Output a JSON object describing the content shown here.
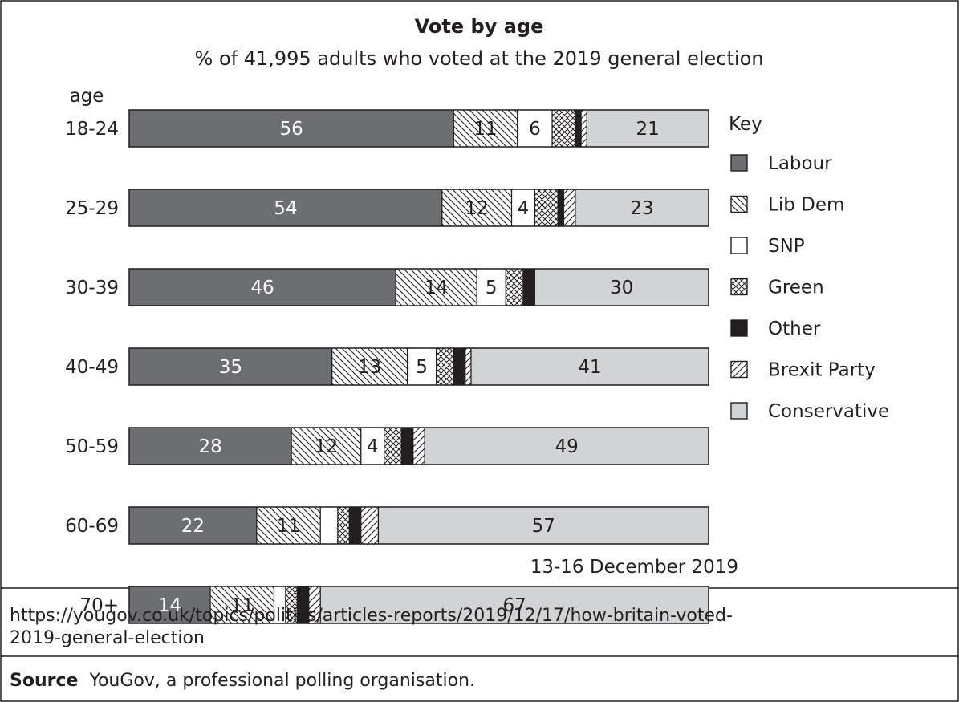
{
  "chart_data": {
    "type": "bar",
    "orientation": "horizontal",
    "stacked": true,
    "title": "Vote by age",
    "subtitle": "% of 41,995 adults who voted at the 2019 general election",
    "ylabel": "age",
    "xlim": [
      0,
      100
    ],
    "grid": false,
    "legend_title": "Key",
    "legend_position": "right",
    "categories": [
      "18-24",
      "25-29",
      "30-39",
      "40-49",
      "50-59",
      "60-69",
      "70+"
    ],
    "series": [
      {
        "name": "Labour",
        "values": [
          56,
          54,
          46,
          35,
          28,
          22,
          14
        ],
        "shown_labels": [
          "56",
          "54",
          "46",
          "35",
          "28",
          "22",
          "14"
        ],
        "fill": "solid",
        "color": "#6d6e71",
        "label_color": "#ffffff"
      },
      {
        "name": "Lib Dem",
        "values": [
          11,
          12,
          14,
          13,
          12,
          11,
          11
        ],
        "shown_labels": [
          "11",
          "12",
          "14",
          "13",
          "12",
          "11",
          "11"
        ],
        "fill": "diagonal-back",
        "color": "#ffffff",
        "label_color": "#231f20"
      },
      {
        "name": "SNP",
        "values": [
          6,
          4,
          5,
          5,
          4,
          3,
          2
        ],
        "shown_labels": [
          "6",
          "4",
          "5",
          "5",
          "4",
          "",
          ""
        ],
        "fill": "solid",
        "color": "#ffffff",
        "label_color": "#231f20"
      },
      {
        "name": "Green",
        "values": [
          4,
          4,
          3,
          3,
          3,
          2,
          2
        ],
        "shown_labels": [
          "",
          "",
          "",
          "",
          "",
          "",
          ""
        ],
        "fill": "crosshatch",
        "color": "#ffffff",
        "label_color": "#231f20"
      },
      {
        "name": "Other",
        "values": [
          1,
          1,
          2,
          2,
          2,
          2,
          2
        ],
        "shown_labels": [
          "",
          "",
          "",
          "",
          "",
          "",
          ""
        ],
        "fill": "solid",
        "color": "#231f20",
        "label_color": "#ffffff"
      },
      {
        "name": "Brexit Party",
        "values": [
          1,
          2,
          0,
          1,
          2,
          3,
          2
        ],
        "shown_labels": [
          "",
          "",
          "",
          "",
          "",
          "",
          ""
        ],
        "fill": "diagonal-forward",
        "color": "#ffffff",
        "label_color": "#231f20"
      },
      {
        "name": "Conservative",
        "values": [
          21,
          23,
          30,
          41,
          49,
          57,
          67
        ],
        "shown_labels": [
          "21",
          "23",
          "30",
          "41",
          "49",
          "57",
          "67"
        ],
        "fill": "solid",
        "color": "#d1d3d4",
        "label_color": "#231f20"
      }
    ],
    "annotations": [
      "13-16 December 2019"
    ]
  },
  "footer": {
    "url_line_1": "https://yougov.co.uk/topics/politics/articles-reports/2019/12/17/how-britain-voted-",
    "url_line_2": "2019-general-election",
    "source_label": "Source",
    "source_text": "YouGov, a professional polling organisation."
  }
}
